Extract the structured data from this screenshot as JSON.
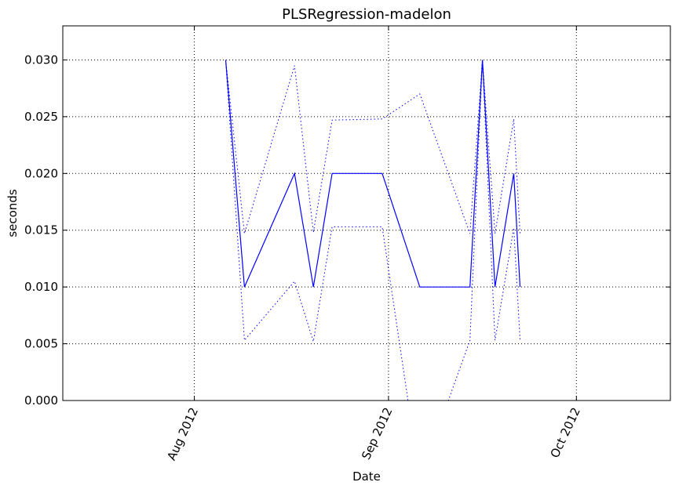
{
  "chart_data": {
    "type": "line",
    "title": "PLSRegression-madelon",
    "xlabel": "Date",
    "ylabel": "seconds",
    "x_type": "date",
    "xlim": [
      "2012-07-11",
      "2012-10-16"
    ],
    "ylim": [
      0,
      0.033
    ],
    "grid": true,
    "x_ticks": [
      {
        "date": "2012-08-01",
        "label": "Aug 2012"
      },
      {
        "date": "2012-09-01",
        "label": "Sep 2012"
      },
      {
        "date": "2012-10-01",
        "label": "Oct 2012"
      }
    ],
    "y_ticks": [
      {
        "value": 0.0,
        "label": "0.000"
      },
      {
        "value": 0.005,
        "label": "0.005"
      },
      {
        "value": 0.01,
        "label": "0.010"
      },
      {
        "value": 0.015,
        "label": "0.015"
      },
      {
        "value": 0.02,
        "label": "0.020"
      },
      {
        "value": 0.025,
        "label": "0.025"
      },
      {
        "value": 0.03,
        "label": "0.030"
      }
    ],
    "color": "#0000ff",
    "x": [
      "2012-08-06",
      "2012-08-09",
      "2012-08-17",
      "2012-08-20",
      "2012-08-23",
      "2012-08-31",
      "2012-09-06",
      "2012-09-14",
      "2012-09-16",
      "2012-09-18",
      "2012-09-21",
      "2012-09-22"
    ],
    "series": [
      {
        "role": "mean",
        "style": "solid",
        "values": [
          0.03,
          0.01,
          0.02,
          0.01,
          0.02,
          0.02,
          0.01,
          0.01,
          0.03,
          0.01,
          0.02,
          0.01
        ]
      },
      {
        "role": "upper",
        "style": "dotted",
        "values": [
          0.03,
          0.0147,
          0.0295,
          0.0148,
          0.0247,
          0.0248,
          0.027,
          0.0147,
          0.03,
          0.0147,
          0.0248,
          0.0147
        ]
      },
      {
        "role": "lower",
        "style": "dotted",
        "values": [
          0.03,
          0.0053,
          0.0105,
          0.0052,
          0.0153,
          0.0153,
          -0.007,
          0.0053,
          0.03,
          0.0053,
          0.0152,
          0.0053
        ]
      }
    ]
  }
}
